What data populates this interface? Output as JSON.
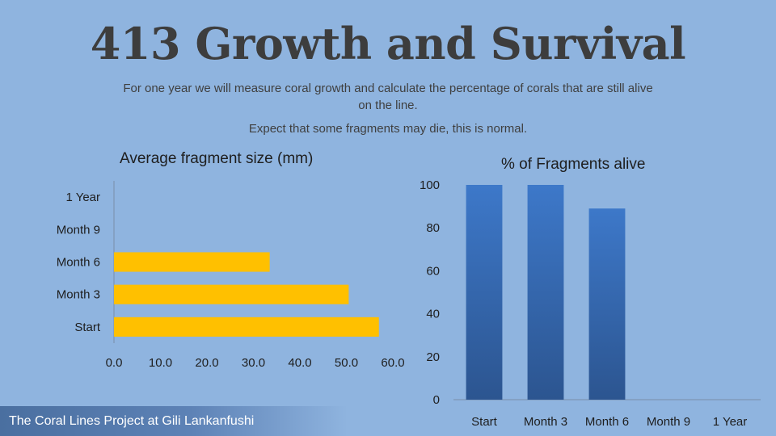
{
  "slide": {
    "title": "413 Growth and Survival",
    "subtitle_1": "For one year we will measure coral growth and calculate the percentage of corals that are still alive on the line.",
    "subtitle_2": "Expect that some fragments may die, this is normal.",
    "footer": "The Coral Lines Project at Gili Lankanfushi"
  },
  "chart_data": [
    {
      "type": "bar",
      "orientation": "horizontal",
      "title": "Average fragment size (mm)",
      "categories": [
        "Start",
        "Month 3",
        "Month 6",
        "Month 9",
        "1 Year"
      ],
      "values": [
        57,
        50.5,
        33.5,
        null,
        null
      ],
      "xlim": [
        0,
        60
      ],
      "xticks": [
        "0.0",
        "10.0",
        "20.0",
        "30.0",
        "40.0",
        "50.0",
        "60.0"
      ],
      "color": "#ffc000",
      "grid": false
    },
    {
      "type": "bar",
      "orientation": "vertical",
      "title": "% of Fragments alive",
      "categories": [
        "Start",
        "Month 3",
        "Month 6",
        "Month 9",
        "1 Year"
      ],
      "values": [
        100,
        100,
        89,
        null,
        null
      ],
      "ylim": [
        0,
        100
      ],
      "yticks": [
        "0",
        "20",
        "40",
        "60",
        "80",
        "100"
      ],
      "color": "#3a6fb8",
      "grid": false
    }
  ]
}
